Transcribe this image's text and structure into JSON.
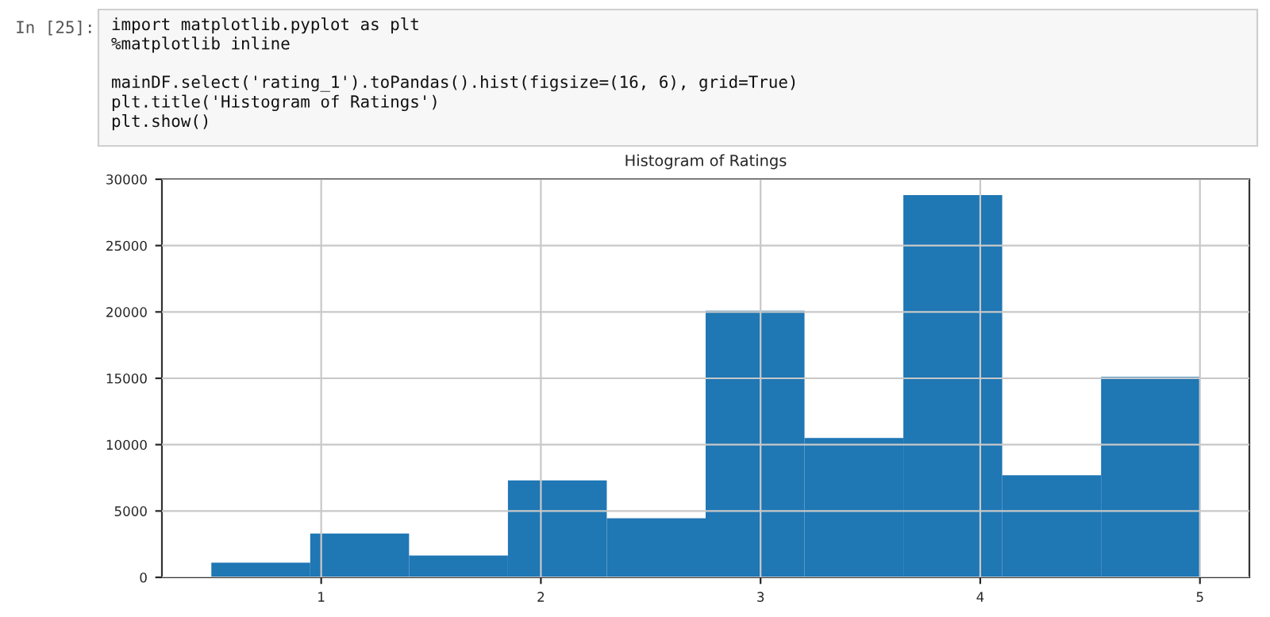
{
  "chart_data": {
    "type": "histogram",
    "title": "Histogram of Ratings",
    "bins": [
      0.5,
      0.95,
      1.4,
      1.85,
      2.3,
      2.75,
      3.2,
      3.65,
      4.1,
      4.55,
      5.0
    ],
    "values": [
      1100,
      3300,
      1650,
      7300,
      4450,
      20100,
      10500,
      28800,
      7700,
      15100
    ],
    "color": "#1f77b4",
    "xlim": [
      0.275,
      5.225
    ],
    "xticks": [
      1,
      2,
      3,
      4,
      5
    ],
    "ylim": [
      0,
      30000
    ],
    "yticks": [
      0,
      5000,
      10000,
      15000,
      20000,
      25000,
      30000
    ],
    "grid": true,
    "annotations": [
      "In [25]:",
      "import matplotlib.pyplot as plt\n%matplotlib inline\n\nmainDF.select('rating_1').toPandas().hist(figsize=(16, 6), grid=True)\nplt.title('Histogram of Ratings')\nplt.show()"
    ]
  }
}
